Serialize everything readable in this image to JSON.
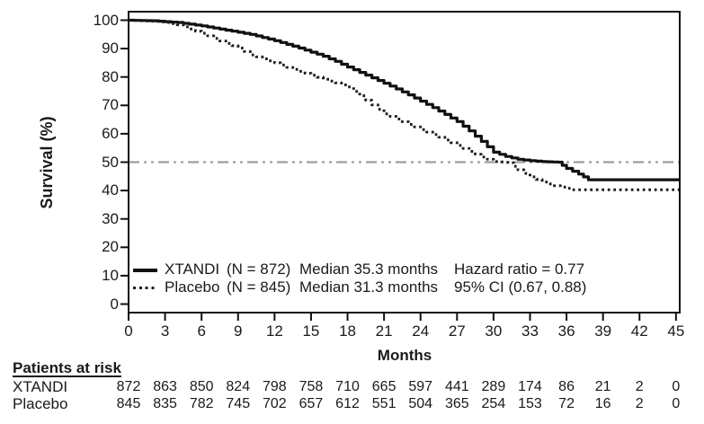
{
  "legend": {
    "rows": [
      {
        "name": "XTANDI",
        "n": "(N = 872)",
        "median": "Median 35.3 months",
        "stat": "Hazard ratio = 0.77",
        "line_style": "solid"
      },
      {
        "name": "Placebo",
        "n": "(N = 845)",
        "median": "Median 31.3 months",
        "stat": "95% CI (0.67, 0.88)",
        "line_style": "dotted"
      }
    ]
  },
  "risk_table": {
    "header": "Patients at risk",
    "rows": [
      {
        "label": "XTANDI",
        "values": [
          "872",
          "863",
          "850",
          "824",
          "798",
          "758",
          "710",
          "665",
          "597",
          "441",
          "289",
          "174",
          "86",
          "21",
          "2",
          "0"
        ]
      },
      {
        "label": "Placebo",
        "values": [
          "845",
          "835",
          "782",
          "745",
          "702",
          "657",
          "612",
          "551",
          "504",
          "365",
          "254",
          "153",
          "72",
          "16",
          "2",
          "0"
        ]
      }
    ]
  },
  "chart_data": {
    "type": "line",
    "subtype": "kaplan-meier-step",
    "title": "",
    "xlabel": "Months",
    "ylabel": "Survival (%)",
    "xlim": [
      0,
      45
    ],
    "ylim": [
      0,
      100
    ],
    "x_ticks": [
      0,
      3,
      6,
      9,
      12,
      15,
      18,
      21,
      24,
      27,
      30,
      33,
      36,
      39,
      42,
      45
    ],
    "y_ticks": [
      0,
      10,
      20,
      30,
      40,
      50,
      60,
      70,
      80,
      90,
      100
    ],
    "grid": false,
    "legend_position": "inside-bottom-left",
    "reference_line_y": 50,
    "colors": {
      "curve": "#111111",
      "dotted_curve": "#1d1d1d",
      "reference_line": "#9d9d9d",
      "text": "#1a1a1a"
    },
    "series": [
      {
        "name": "XTANDI",
        "style": "solid",
        "median_months": 35.3,
        "points": [
          [
            0,
            100
          ],
          [
            2,
            99.8
          ],
          [
            4,
            99.2
          ],
          [
            6,
            98.0
          ],
          [
            8,
            96.5
          ],
          [
            10,
            95.0
          ],
          [
            12,
            92.8
          ],
          [
            14,
            90.2
          ],
          [
            16,
            87.3
          ],
          [
            17,
            85.5
          ],
          [
            18,
            83.5
          ],
          [
            19,
            81.6
          ],
          [
            20,
            79.7
          ],
          [
            21,
            77.8
          ],
          [
            22,
            75.8
          ],
          [
            23,
            73.7
          ],
          [
            24,
            71.5
          ],
          [
            25,
            69.2
          ],
          [
            26,
            66.8
          ],
          [
            27,
            64.3
          ],
          [
            28,
            61.0
          ],
          [
            29,
            57.3
          ],
          [
            30,
            53.5
          ],
          [
            31,
            52.0
          ],
          [
            32,
            51.0
          ],
          [
            33,
            50.5
          ],
          [
            34,
            50.2
          ],
          [
            35.3,
            50.0
          ],
          [
            36,
            47.8
          ],
          [
            37,
            45.8
          ],
          [
            37.8,
            43.8
          ],
          [
            45,
            43.8
          ]
        ]
      },
      {
        "name": "Placebo",
        "style": "dotted",
        "median_months": 31.3,
        "points": [
          [
            0,
            100
          ],
          [
            2,
            99.6
          ],
          [
            3,
            99.2
          ],
          [
            4,
            98.4
          ],
          [
            5,
            96.9
          ],
          [
            6,
            95.4
          ],
          [
            7,
            93.6
          ],
          [
            8,
            91.8
          ],
          [
            9,
            90.2
          ],
          [
            10,
            87.8
          ],
          [
            11,
            86.4
          ],
          [
            12,
            85.0
          ],
          [
            13,
            83.4
          ],
          [
            14,
            82.0
          ],
          [
            15,
            80.6
          ],
          [
            16,
            79.2
          ],
          [
            17,
            77.9
          ],
          [
            18,
            76.5
          ],
          [
            19,
            73.4
          ],
          [
            20,
            70.2
          ],
          [
            21,
            67.0
          ],
          [
            22,
            65.2
          ],
          [
            23,
            63.3
          ],
          [
            24,
            61.5
          ],
          [
            25,
            59.7
          ],
          [
            26,
            57.8
          ],
          [
            27,
            55.9
          ],
          [
            28,
            53.8
          ],
          [
            29,
            51.8
          ],
          [
            30,
            50.2
          ],
          [
            31.3,
            49.8
          ],
          [
            32,
            47.3
          ],
          [
            33,
            44.8
          ],
          [
            34,
            43.0
          ],
          [
            35,
            41.7
          ],
          [
            36,
            40.8
          ],
          [
            36.5,
            40.3
          ],
          [
            45,
            40.3
          ]
        ]
      }
    ]
  }
}
